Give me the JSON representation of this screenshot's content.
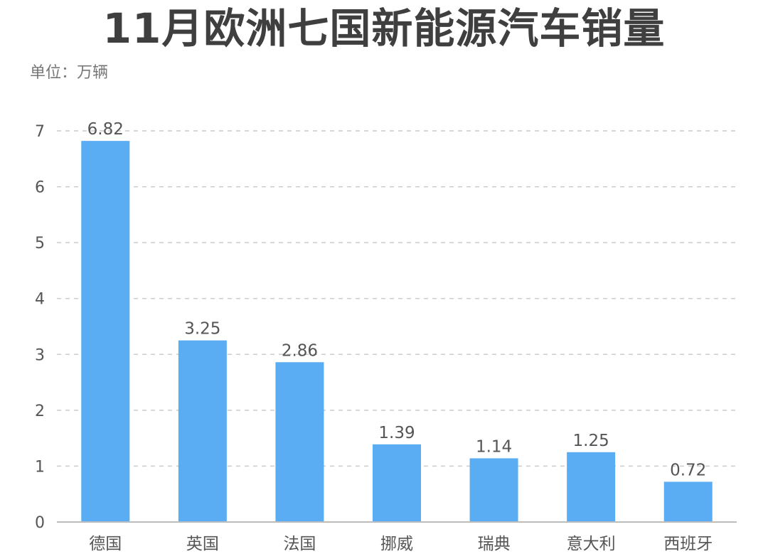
{
  "chart_data": {
    "type": "bar",
    "title": "11月欧洲七国新能源汽车销量",
    "unit_label": "单位：万辆",
    "categories": [
      "德国",
      "英国",
      "法国",
      "挪威",
      "瑞典",
      "意大利",
      "西班牙"
    ],
    "values": [
      6.82,
      3.25,
      2.86,
      1.39,
      1.14,
      1.25,
      0.72
    ],
    "value_labels": [
      "6.82",
      "3.25",
      "2.86",
      "1.39",
      "1.14",
      "1.25",
      "0.72"
    ],
    "ylim": [
      0,
      7
    ],
    "yticks": [
      0,
      1,
      2,
      3,
      4,
      5,
      6,
      7
    ],
    "grid": true,
    "legend": "none",
    "colors": {
      "bar": "#5aadf2",
      "grid": "#cccccc",
      "axis": "#bdbdbd",
      "text": "#555555"
    }
  }
}
